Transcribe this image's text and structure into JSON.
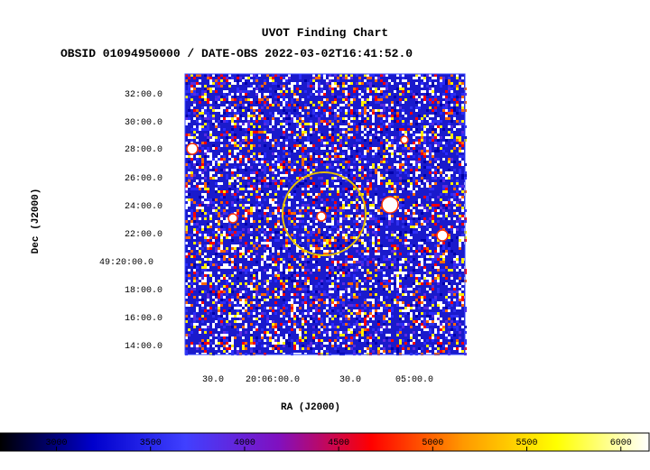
{
  "title": "UVOT Finding Chart",
  "subtitle": "OBSID 01094950000 / DATE-OBS 2022-03-02T16:41:52.0",
  "chart_data": {
    "type": "heatmap",
    "title": "UVOT Finding Chart",
    "xlabel": "RA (J2000)",
    "ylabel": "Dec (J2000)",
    "x_ticks": [
      "30.0",
      "20:06:00.0",
      "30.0",
      "05:00.0"
    ],
    "y_ticks": [
      "32:00.0",
      "30:00.0",
      "28:00.0",
      "26:00.0",
      "24:00.0",
      "22:00.0",
      "49:20:00.0",
      "18:00.0",
      "16:00.0",
      "14:00.0"
    ],
    "colorbar": {
      "ticks": [
        3000,
        3500,
        4000,
        4500,
        5000,
        5500,
        6000
      ],
      "range": [
        2700,
        6150
      ],
      "stops": [
        "#000000",
        "#0000cc",
        "#4040ff",
        "#8010c0",
        "#ff0000",
        "#ff9900",
        "#ffff00",
        "#ffffff"
      ]
    },
    "marker": {
      "shape": "circle",
      "color": "#e8c000"
    }
  }
}
